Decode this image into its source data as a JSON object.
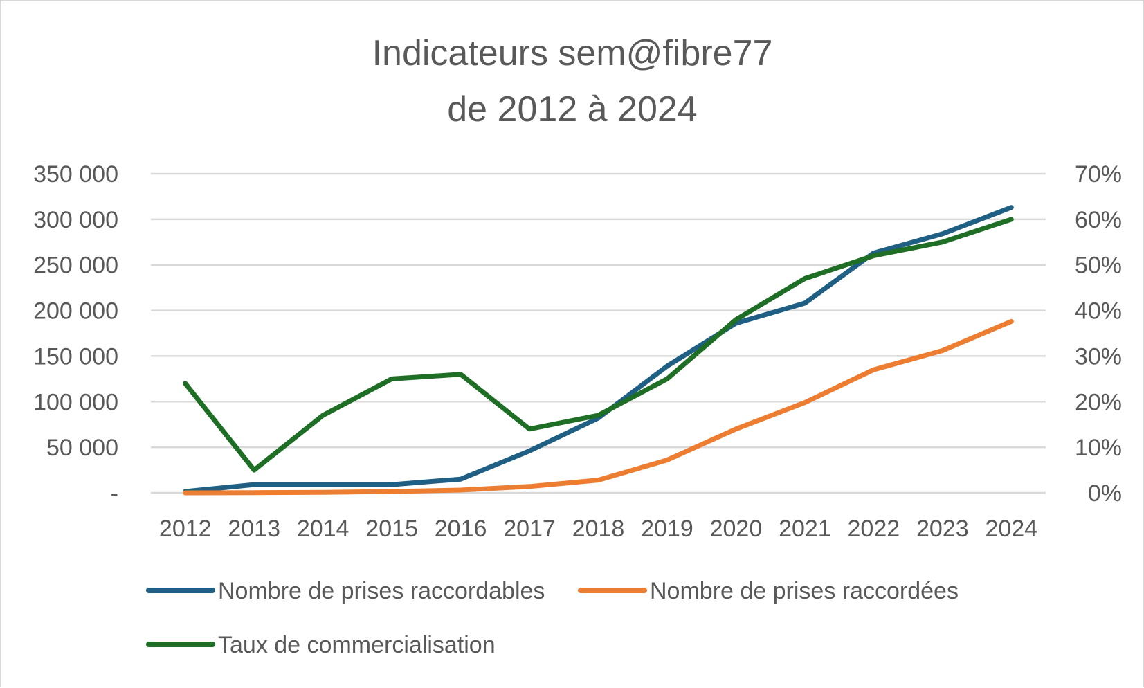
{
  "chart_data": {
    "type": "line",
    "title_lines": [
      "Indicateurs sem@fibre77",
      "de 2012 à 2024"
    ],
    "categories": [
      "2012",
      "2013",
      "2014",
      "2015",
      "2016",
      "2017",
      "2018",
      "2019",
      "2020",
      "2021",
      "2022",
      "2023",
      "2024"
    ],
    "y_left": {
      "range": [
        0,
        350000
      ],
      "ticks": [
        0,
        50000,
        100000,
        150000,
        200000,
        250000,
        300000,
        350000
      ],
      "tick_labels": [
        "-",
        "50 000",
        "100 000",
        "150 000",
        "200 000",
        "250 000",
        "300 000",
        "350 000"
      ]
    },
    "y_right": {
      "range": [
        0,
        0.7
      ],
      "ticks": [
        0,
        0.1,
        0.2,
        0.3,
        0.4,
        0.5,
        0.6,
        0.7
      ],
      "tick_labels": [
        "0%",
        "10%",
        "20%",
        "30%",
        "40%",
        "50%",
        "60%",
        "70%"
      ]
    },
    "grid": true,
    "legend_position": "bottom",
    "series": [
      {
        "name": "Nombre de prises raccordables",
        "axis": "left",
        "color": "#1f5f84",
        "values": [
          1500,
          9000,
          9000,
          9000,
          15000,
          46000,
          82000,
          139000,
          186000,
          208000,
          263000,
          284000,
          313000
        ]
      },
      {
        "name": "Nombre de prises raccordées",
        "axis": "left",
        "color": "#ed7d31",
        "values": [
          0,
          200,
          500,
          1500,
          3000,
          7000,
          14000,
          36000,
          70000,
          99000,
          135000,
          156000,
          188000
        ]
      },
      {
        "name": "Taux de commercialisation",
        "axis": "right",
        "color": "#1e6e25",
        "values": [
          0.24,
          0.05,
          0.17,
          0.25,
          0.26,
          0.14,
          0.17,
          0.25,
          0.38,
          0.47,
          0.52,
          0.55,
          0.6
        ]
      }
    ]
  }
}
